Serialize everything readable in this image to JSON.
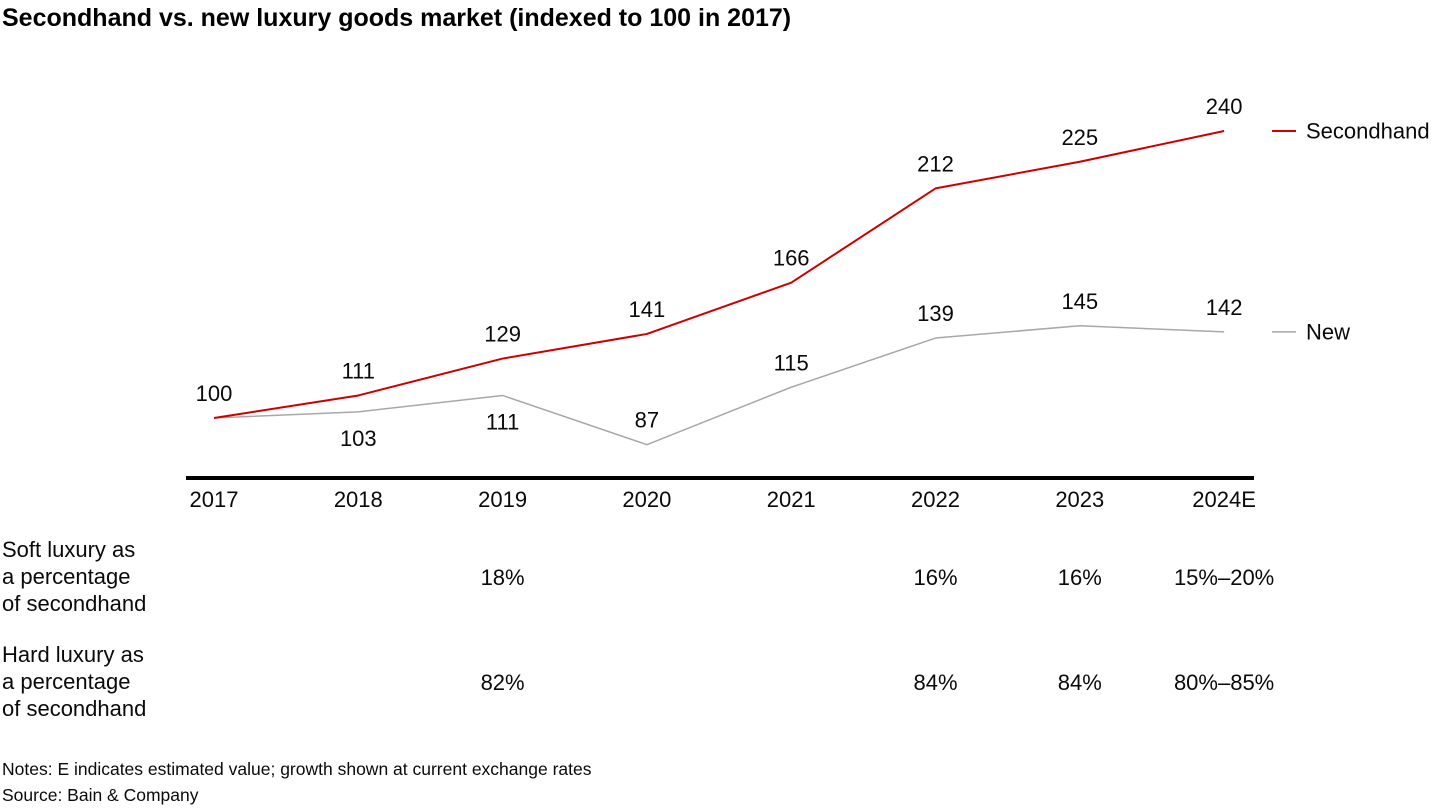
{
  "chart_data": {
    "type": "line",
    "title": "Secondhand vs. new luxury goods market (indexed to 100 in 2017)",
    "categories": [
      "2017",
      "2018",
      "2019",
      "2020",
      "2021",
      "2022",
      "2023",
      "2024E"
    ],
    "series": [
      {
        "name": "Secondhand",
        "color": "#cc0000",
        "values": [
          100,
          111,
          129,
          141,
          166,
          212,
          225,
          240
        ],
        "labels": [
          "100",
          "111",
          "129",
          "141",
          "166",
          "212",
          "225",
          "240"
        ],
        "label_below": [
          false,
          false,
          false,
          false,
          false,
          false,
          false,
          false
        ]
      },
      {
        "name": "New",
        "color": "#a8a8a8",
        "values": [
          100,
          103,
          111,
          87,
          115,
          139,
          145,
          142
        ],
        "labels": [
          "",
          "103",
          "111",
          "87",
          "115",
          "139",
          "145",
          "142"
        ],
        "label_below": [
          false,
          true,
          true,
          false,
          false,
          false,
          false,
          false
        ]
      }
    ],
    "ylim": [
      80,
      250
    ],
    "grid": false,
    "legend_position": "right",
    "axis_color": "#000000"
  },
  "table": {
    "rows": [
      {
        "label_lines": [
          "Soft luxury as",
          "a percentage",
          "of secondhand"
        ],
        "values": [
          "",
          "",
          "18%",
          "",
          "",
          "16%",
          "16%",
          "15%–20%"
        ]
      },
      {
        "label_lines": [
          "Hard luxury as",
          "a percentage",
          "of secondhand"
        ],
        "values": [
          "",
          "",
          "82%",
          "",
          "",
          "84%",
          "84%",
          "80%–85%"
        ]
      }
    ]
  },
  "footer": {
    "notes": "Notes: E indicates estimated value; growth shown at current exchange rates",
    "source": "Source: Bain & Company"
  }
}
